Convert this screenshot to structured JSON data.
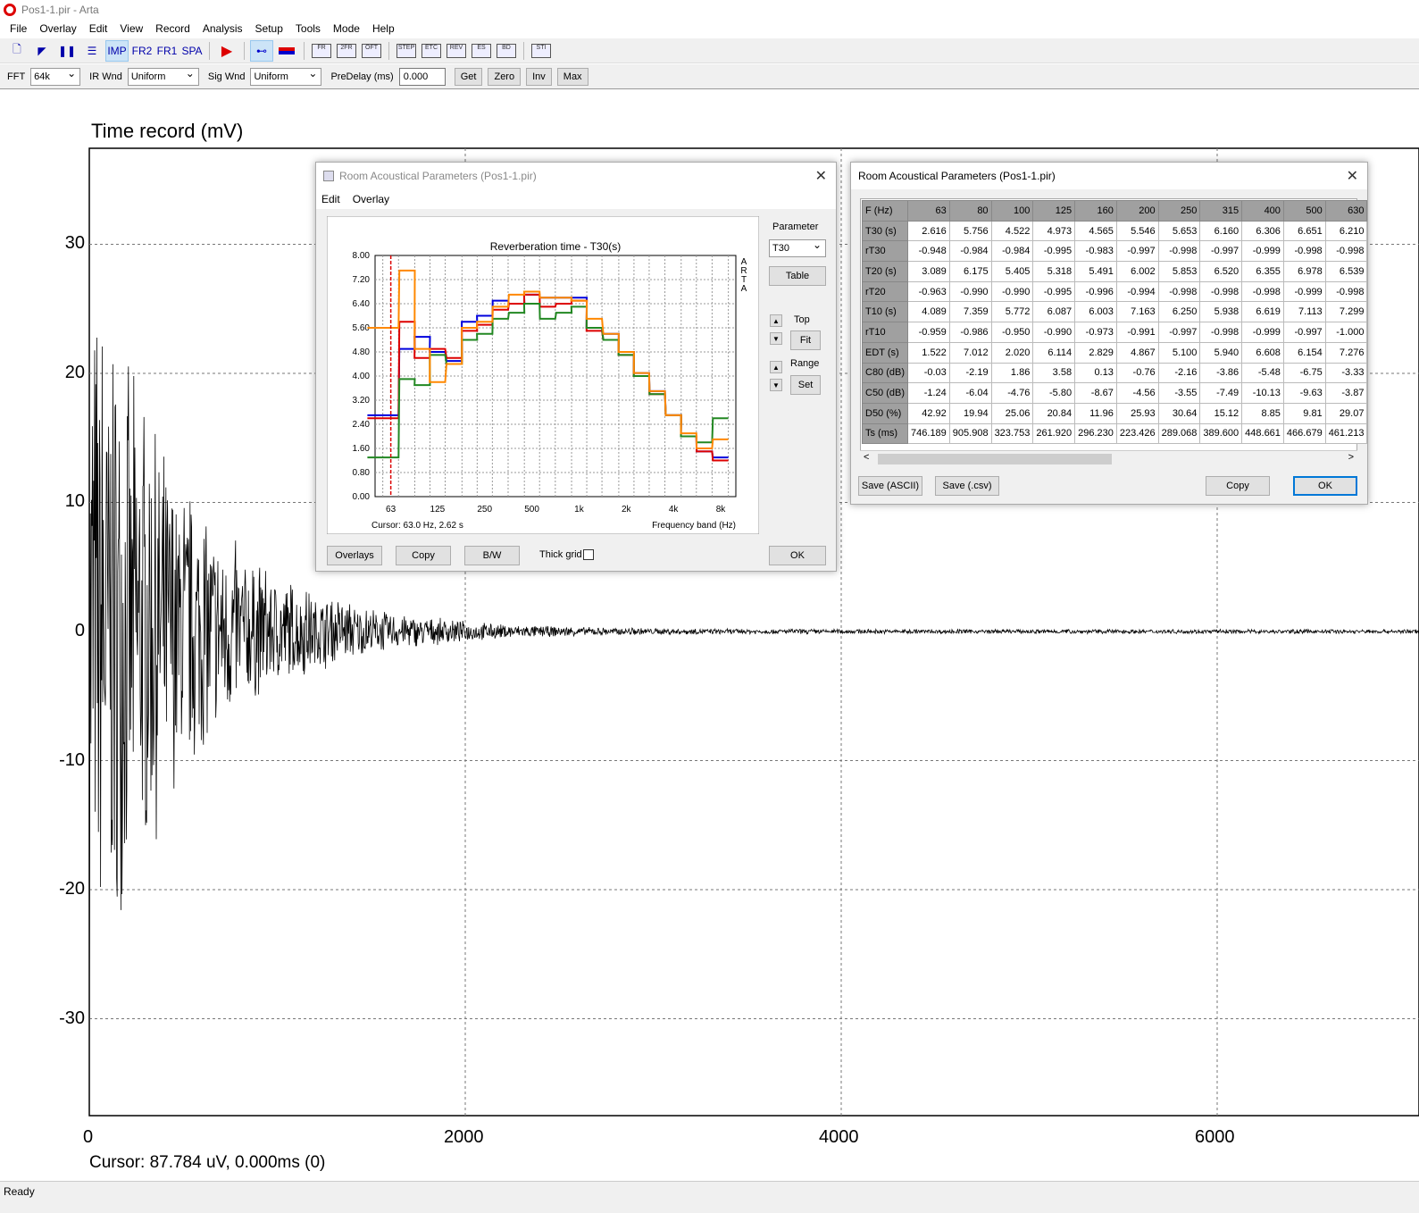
{
  "window": {
    "title": "Pos1-1.pir - Arta"
  },
  "menu": [
    "File",
    "Overlay",
    "Edit",
    "View",
    "Record",
    "Analysis",
    "Setup",
    "Tools",
    "Mode",
    "Help"
  ],
  "toolbar": {
    "imp": "IMP",
    "fr2": "FR2",
    "fr1": "FR1",
    "spa": "SPA",
    "icons": [
      "FR",
      "2FR",
      "OFT",
      "STEP",
      "ETC",
      "REV",
      "ES",
      "BD",
      "STI"
    ]
  },
  "options": {
    "fft_label": "FFT",
    "fft_value": "64k",
    "irwnd_label": "IR Wnd",
    "irwnd_value": "Uniform",
    "sigwnd_label": "Sig Wnd",
    "sigwnd_value": "Uniform",
    "predelay_label": "PreDelay (ms)",
    "predelay_value": "0.000",
    "get": "Get",
    "zero": "Zero",
    "inv": "Inv",
    "max": "Max"
  },
  "main_plot": {
    "title": "Time record (mV)",
    "yticks": [
      "30",
      "20",
      "10",
      "0",
      "-10",
      "-20",
      "-30"
    ],
    "xticks": [
      "0",
      "2000",
      "4000",
      "6000"
    ],
    "cursor": "Cursor: 87.784 uV, 0.000ms (0)"
  },
  "status": "Ready",
  "dlg1": {
    "title": "Room Acoustical Parameters (Pos1-1.pir)",
    "menu_edit": "Edit",
    "menu_overlay": "Overlay",
    "param_label": "Parameter",
    "param_value": "T30",
    "table_btn": "Table",
    "top_label": "Top",
    "fit_btn": "Fit",
    "range_label": "Range",
    "set_btn": "Set",
    "overlays_btn": "Overlays",
    "copy_btn": "Copy",
    "bw_btn": "B/W",
    "thick_grid": "Thick grid",
    "ok_btn": "OK"
  },
  "chart_data": {
    "type": "line",
    "title": "Reverberation time - T30(s)",
    "xlabel": "Frequency band (Hz)",
    "ylabel": "",
    "watermark": "ARTA",
    "cursor": "Cursor:   63.0 Hz, 2.62 s",
    "ylim": [
      0,
      8
    ],
    "yticks": [
      "8.00",
      "7.20",
      "6.40",
      "5.60",
      "4.80",
      "4.00",
      "3.20",
      "2.40",
      "1.60",
      "0.80",
      "0.00"
    ],
    "xticks": [
      "63",
      "125",
      "250",
      "500",
      "1k",
      "2k",
      "4k",
      "8k"
    ],
    "x": [
      50,
      63,
      80,
      100,
      125,
      160,
      200,
      250,
      315,
      400,
      500,
      630,
      800,
      1000,
      1250,
      1600,
      2000,
      2500,
      3150,
      4000,
      5000,
      6300,
      8000
    ],
    "series": [
      {
        "color": "#0000dd",
        "values": [
          2.7,
          2.7,
          4.9,
          5.3,
          4.8,
          4.5,
          5.8,
          6.0,
          6.5,
          6.4,
          6.7,
          6.6,
          6.6,
          6.6,
          5.6,
          5.4,
          4.8,
          4.1,
          3.5,
          2.7,
          2.0,
          1.5,
          1.3
        ]
      },
      {
        "color": "#dd0000",
        "values": [
          2.6,
          2.6,
          5.8,
          4.6,
          4.9,
          4.6,
          5.5,
          5.7,
          6.2,
          6.4,
          6.7,
          6.3,
          6.4,
          6.5,
          5.5,
          5.2,
          4.7,
          4.0,
          3.4,
          2.7,
          2.0,
          1.5,
          1.2
        ]
      },
      {
        "color": "#228822",
        "values": [
          1.3,
          1.3,
          3.9,
          3.7,
          4.7,
          4.4,
          5.2,
          5.4,
          5.9,
          6.1,
          6.4,
          5.9,
          6.1,
          6.3,
          5.6,
          5.2,
          4.7,
          4.0,
          3.4,
          2.7,
          2.0,
          1.8,
          2.6
        ]
      },
      {
        "color": "#ff8800",
        "values": [
          5.6,
          5.6,
          7.5,
          4.9,
          3.8,
          4.4,
          5.6,
          5.8,
          6.3,
          6.7,
          6.8,
          6.6,
          6.6,
          6.5,
          5.9,
          5.4,
          4.8,
          4.1,
          3.5,
          2.7,
          2.1,
          1.6,
          1.9
        ]
      }
    ],
    "cursor_hz": 63
  },
  "dlg2": {
    "title": "Room Acoustical Parameters (Pos1-1.pir)",
    "save_ascii": "Save (ASCII)",
    "save_csv": "Save (.csv)",
    "copy": "Copy",
    "ok": "OK",
    "header": [
      "F (Hz)",
      "63",
      "80",
      "100",
      "125",
      "160",
      "200",
      "250",
      "315",
      "400",
      "500",
      "630"
    ],
    "rows": [
      [
        "T30 (s)",
        "2.616",
        "5.756",
        "4.522",
        "4.973",
        "4.565",
        "5.546",
        "5.653",
        "6.160",
        "6.306",
        "6.651",
        "6.210"
      ],
      [
        "rT30",
        "-0.948",
        "-0.984",
        "-0.984",
        "-0.995",
        "-0.983",
        "-0.997",
        "-0.998",
        "-0.997",
        "-0.999",
        "-0.998",
        "-0.998"
      ],
      [
        "T20 (s)",
        "3.089",
        "6.175",
        "5.405",
        "5.318",
        "5.491",
        "6.002",
        "5.853",
        "6.520",
        "6.355",
        "6.978",
        "6.539"
      ],
      [
        "rT20",
        "-0.963",
        "-0.990",
        "-0.990",
        "-0.995",
        "-0.996",
        "-0.994",
        "-0.998",
        "-0.998",
        "-0.998",
        "-0.999",
        "-0.998"
      ],
      [
        "T10 (s)",
        "4.089",
        "7.359",
        "5.772",
        "6.087",
        "6.003",
        "7.163",
        "6.250",
        "5.938",
        "6.619",
        "7.113",
        "7.299"
      ],
      [
        "rT10",
        "-0.959",
        "-0.986",
        "-0.950",
        "-0.990",
        "-0.973",
        "-0.991",
        "-0.997",
        "-0.998",
        "-0.999",
        "-0.997",
        "-1.000"
      ],
      [
        "EDT (s)",
        "1.522",
        "7.012",
        "2.020",
        "6.114",
        "2.829",
        "4.867",
        "5.100",
        "5.940",
        "6.608",
        "6.154",
        "7.276"
      ],
      [
        "C80 (dB)",
        "-0.03",
        "-2.19",
        "1.86",
        "3.58",
        "0.13",
        "-0.76",
        "-2.16",
        "-3.86",
        "-5.48",
        "-6.75",
        "-3.33"
      ],
      [
        "C50 (dB)",
        "-1.24",
        "-6.04",
        "-4.76",
        "-5.80",
        "-8.67",
        "-4.56",
        "-3.55",
        "-7.49",
        "-10.13",
        "-9.63",
        "-3.87"
      ],
      [
        "D50 (%)",
        "42.92",
        "19.94",
        "25.06",
        "20.84",
        "11.96",
        "25.93",
        "30.64",
        "15.12",
        "8.85",
        "9.81",
        "29.07"
      ],
      [
        "Ts (ms)",
        "746.189",
        "905.908",
        "323.753",
        "261.920",
        "296.230",
        "223.426",
        "289.068",
        "389.600",
        "448.661",
        "466.679",
        "461.213"
      ]
    ]
  }
}
